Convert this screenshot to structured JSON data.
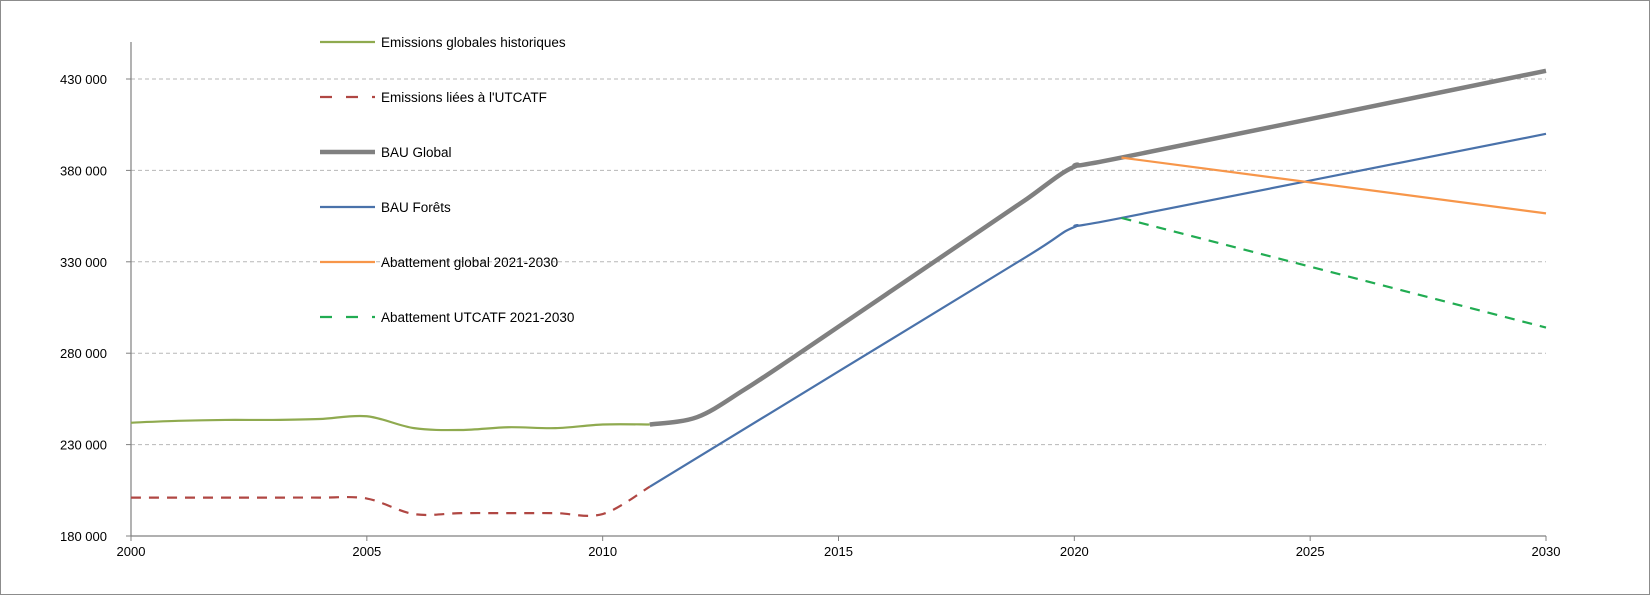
{
  "chart_data": {
    "type": "line",
    "title": "",
    "xlabel": "",
    "ylabel": "",
    "xlim": [
      2000,
      2030
    ],
    "ylim": [
      180000,
      450000
    ],
    "x_ticks": [
      2000,
      2005,
      2010,
      2015,
      2020,
      2025,
      2030
    ],
    "y_ticks": [
      180000,
      230000,
      280000,
      330000,
      380000,
      430000
    ],
    "x_tick_labels": [
      "2000",
      "2005",
      "2010",
      "2015",
      "2020",
      "2025",
      "2030"
    ],
    "y_tick_labels": [
      "180 000",
      "230 000",
      "280 000",
      "330 000",
      "380 000",
      "430 000"
    ],
    "grid": "horizontal dashed",
    "legend_position": "top-left",
    "series": [
      {
        "name": "Emissions globales historiques",
        "color": "#8faa4f",
        "style": "solid",
        "points": [
          [
            2000,
            242000
          ],
          [
            2001,
            243000
          ],
          [
            2002,
            243500
          ],
          [
            2003,
            243500
          ],
          [
            2004,
            244000
          ],
          [
            2005,
            245500
          ],
          [
            2006,
            239000
          ],
          [
            2007,
            238000
          ],
          [
            2008,
            239500
          ],
          [
            2009,
            239000
          ],
          [
            2010,
            241000
          ],
          [
            2011,
            241000
          ]
        ]
      },
      {
        "name": "Emissions liées à l'UTCATF",
        "color": "#b04743",
        "style": "dashed",
        "points": [
          [
            2000,
            201000
          ],
          [
            2001,
            201000
          ],
          [
            2002,
            201000
          ],
          [
            2003,
            201000
          ],
          [
            2004,
            201000
          ],
          [
            2005,
            200500
          ],
          [
            2006,
            192000
          ],
          [
            2007,
            192500
          ],
          [
            2008,
            192500
          ],
          [
            2009,
            192500
          ],
          [
            2010,
            192000
          ],
          [
            2011,
            207000
          ]
        ]
      },
      {
        "name": "BAU Global",
        "color": "#808080",
        "style": "solid-thick",
        "points": [
          [
            2011,
            241000
          ],
          [
            2012,
            245000
          ],
          [
            2013,
            260000
          ],
          [
            2014,
            277000
          ],
          [
            2015,
            294500
          ],
          [
            2016,
            312000
          ],
          [
            2017,
            329500
          ],
          [
            2018,
            347000
          ],
          [
            2019,
            364500
          ],
          [
            2020,
            382000
          ],
          [
            2021,
            387000
          ],
          [
            2030,
            434500
          ]
        ]
      },
      {
        "name": "BAU Forêts",
        "color": "#4a72aa",
        "style": "solid",
        "points": [
          [
            2011,
            207000
          ],
          [
            2015,
            270000
          ],
          [
            2019,
            333000
          ],
          [
            2020,
            349000
          ],
          [
            2021,
            354000
          ],
          [
            2030,
            400000
          ]
        ]
      },
      {
        "name": "Abattement global 2021-2030",
        "color": "#f7964a",
        "style": "solid",
        "points": [
          [
            2021,
            387000
          ],
          [
            2030,
            356500
          ]
        ]
      },
      {
        "name": "Abattement UTCATF 2021-2030",
        "color": "#21ac52",
        "style": "dashed",
        "points": [
          [
            2021,
            354000
          ],
          [
            2030,
            294000
          ]
        ]
      }
    ]
  }
}
